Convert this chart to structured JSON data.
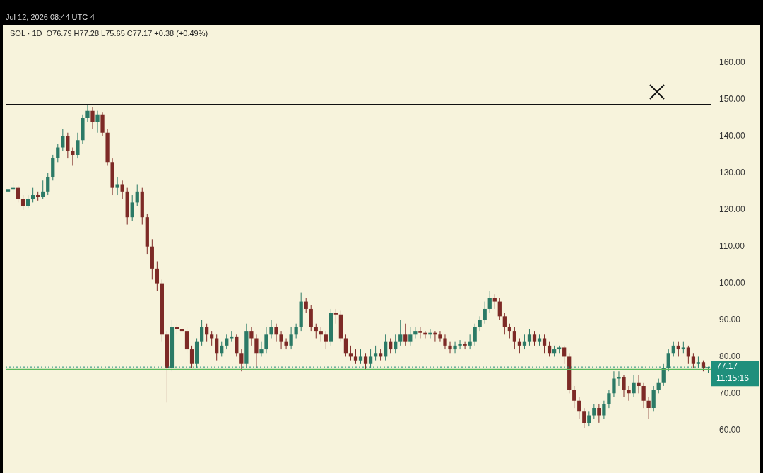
{
  "chart_data": {
    "type": "candlestick",
    "title": "SOL · 1D",
    "subtitle": "O76.79 H77.28 L75.65 C77.17 +0.38 (+0.49%)",
    "annotations": [
      "Jul 12, 2026 08:44 UTC-4",
      "11:15:16"
    ],
    "categories": [
      null,
      null,
      null,
      null,
      null,
      null,
      null,
      null,
      null,
      null,
      null,
      null,
      null,
      null,
      null,
      null,
      null,
      null,
      null,
      null,
      null,
      null,
      null,
      null,
      null,
      null,
      null,
      null,
      null,
      null,
      null,
      null,
      null,
      null,
      null,
      null,
      null,
      null,
      null,
      null,
      null,
      null,
      null,
      null,
      null,
      null,
      null,
      null,
      null,
      null,
      null,
      null,
      null,
      null,
      null,
      null,
      null,
      null,
      null,
      null,
      null,
      null,
      null,
      null,
      null,
      null,
      null,
      null,
      null,
      null,
      null,
      null,
      null,
      null,
      null,
      null,
      null,
      null,
      null,
      null,
      null,
      null,
      null,
      null,
      null,
      null,
      null,
      null,
      null,
      null,
      null,
      null,
      null,
      null,
      null,
      null,
      null,
      null,
      null,
      null,
      null,
      null,
      null,
      null,
      null,
      null,
      null,
      null,
      null,
      null,
      null,
      null,
      null,
      null,
      null,
      null,
      null,
      null,
      null,
      null,
      null,
      null,
      null,
      null,
      null,
      null,
      null,
      null,
      null,
      null,
      null,
      null,
      null,
      null,
      null,
      null,
      null,
      null,
      null,
      null,
      null,
      null
    ],
    "ohlc": [
      [
        125,
        127,
        123.5,
        125.5
      ],
      [
        125.5,
        128,
        124.5,
        126
      ],
      [
        126,
        126.5,
        122,
        123
      ],
      [
        123,
        124,
        120,
        121
      ],
      [
        121,
        124,
        120.5,
        123
      ],
      [
        123,
        126,
        122,
        124
      ],
      [
        124,
        125,
        122.5,
        123.5
      ],
      [
        123.5,
        128,
        123,
        125
      ],
      [
        125,
        130,
        124,
        129
      ],
      [
        129,
        135,
        128,
        134
      ],
      [
        134,
        138,
        133,
        137
      ],
      [
        137,
        142,
        136,
        140
      ],
      [
        140,
        141,
        134,
        136
      ],
      [
        136,
        137,
        132,
        135
      ],
      [
        135,
        141,
        134,
        139
      ],
      [
        139,
        146,
        138,
        145
      ],
      [
        145,
        148.5,
        144,
        147
      ],
      [
        147,
        148,
        142,
        144
      ],
      [
        144,
        147,
        141,
        146
      ],
      [
        146,
        146.5,
        140,
        141
      ],
      [
        141,
        142,
        132,
        133
      ],
      [
        133,
        134,
        124,
        126
      ],
      [
        126,
        129,
        124,
        127
      ],
      [
        127,
        128,
        123,
        125
      ],
      [
        125,
        126,
        116,
        118
      ],
      [
        118,
        124,
        117,
        122
      ],
      [
        122,
        127,
        121,
        125
      ],
      [
        125,
        126,
        116,
        118
      ],
      [
        118,
        119,
        108,
        110
      ],
      [
        110,
        112,
        101,
        104
      ],
      [
        104,
        106,
        98,
        100
      ],
      [
        100,
        101,
        84,
        86
      ],
      [
        86,
        87,
        67.5,
        77
      ],
      [
        77,
        90,
        76,
        88
      ],
      [
        88,
        89,
        86,
        87.5
      ],
      [
        87.5,
        89,
        85,
        87
      ],
      [
        87,
        88,
        81,
        82
      ],
      [
        82,
        83,
        77,
        78
      ],
      [
        78,
        85,
        77,
        84
      ],
      [
        84,
        90,
        83,
        88
      ],
      [
        88,
        89,
        84,
        86
      ],
      [
        86,
        87,
        83,
        85
      ],
      [
        85,
        86,
        79,
        81
      ],
      [
        81,
        84,
        80,
        83
      ],
      [
        83,
        86,
        82,
        85
      ],
      [
        85,
        87,
        84,
        85.5
      ],
      [
        85.5,
        86,
        80,
        81
      ],
      [
        81,
        82,
        76,
        78
      ],
      [
        78,
        89,
        77,
        87
      ],
      [
        87,
        88,
        83,
        85
      ],
      [
        85,
        86,
        77,
        81
      ],
      [
        81,
        84,
        80,
        82
      ],
      [
        82,
        88,
        81,
        86
      ],
      [
        86,
        90,
        85,
        88
      ],
      [
        88,
        89,
        84,
        86
      ],
      [
        86,
        87,
        82,
        84
      ],
      [
        84,
        85,
        82,
        83
      ],
      [
        83,
        88,
        82,
        86
      ],
      [
        86,
        89,
        85,
        88
      ],
      [
        88,
        97.5,
        87,
        95
      ],
      [
        95,
        96,
        92,
        93
      ],
      [
        93,
        94,
        87,
        88
      ],
      [
        88,
        89,
        85,
        87
      ],
      [
        87,
        88,
        84,
        86
      ],
      [
        86,
        87,
        82,
        84
      ],
      [
        84,
        93,
        83,
        92
      ],
      [
        92,
        93,
        89,
        91.5
      ],
      [
        91.5,
        92.5,
        84,
        85
      ],
      [
        85,
        86,
        80,
        81
      ],
      [
        81,
        83,
        79,
        80
      ],
      [
        80,
        82,
        78,
        79
      ],
      [
        79,
        82,
        78,
        80
      ],
      [
        80,
        81,
        76.5,
        78
      ],
      [
        78,
        82,
        77,
        80
      ],
      [
        80,
        83,
        79,
        81
      ],
      [
        81,
        82,
        79,
        80
      ],
      [
        80,
        86,
        79,
        84
      ],
      [
        84,
        85,
        81,
        82
      ],
      [
        82,
        86,
        81,
        84
      ],
      [
        84,
        90,
        83,
        86
      ],
      [
        86,
        89,
        83,
        84
      ],
      [
        84,
        88,
        83,
        86
      ],
      [
        86,
        88,
        85,
        87
      ],
      [
        87,
        88,
        85,
        86.5
      ],
      [
        86.5,
        87,
        85,
        86
      ],
      [
        86,
        87.5,
        85,
        86.5
      ],
      [
        86.5,
        87,
        84,
        86
      ],
      [
        86,
        87,
        84,
        85
      ],
      [
        85,
        86,
        82,
        83
      ],
      [
        83,
        84,
        81,
        82
      ],
      [
        82,
        84,
        81,
        83
      ],
      [
        83,
        84.5,
        82,
        83.5
      ],
      [
        83.5,
        84,
        82,
        83
      ],
      [
        83,
        86,
        82,
        84
      ],
      [
        84,
        89,
        83,
        88
      ],
      [
        88,
        91,
        87,
        90
      ],
      [
        90,
        95,
        89,
        93
      ],
      [
        93,
        98,
        92,
        96
      ],
      [
        96,
        97,
        93,
        95
      ],
      [
        95,
        96,
        90,
        91
      ],
      [
        91,
        92,
        86,
        88
      ],
      [
        88,
        89,
        85,
        87
      ],
      [
        87,
        88,
        82,
        84
      ],
      [
        84,
        85,
        81,
        83
      ],
      [
        83,
        86,
        82,
        84
      ],
      [
        84,
        87.5,
        83,
        86
      ],
      [
        86,
        87,
        83,
        84
      ],
      [
        84,
        86,
        83,
        85
      ],
      [
        85,
        86,
        81,
        83
      ],
      [
        83,
        84,
        80,
        81
      ],
      [
        81,
        83,
        80,
        82
      ],
      [
        82,
        83,
        81,
        82.5
      ],
      [
        82.5,
        83,
        78,
        80
      ],
      [
        80,
        81,
        70,
        71
      ],
      [
        71,
        72,
        66,
        68
      ],
      [
        68,
        69,
        63,
        65
      ],
      [
        65,
        66,
        60.5,
        62
      ],
      [
        62,
        65,
        61,
        64
      ],
      [
        64,
        67,
        63,
        66
      ],
      [
        66,
        67,
        62,
        64
      ],
      [
        64,
        68,
        63,
        67
      ],
      [
        67,
        71,
        66,
        70
      ],
      [
        70,
        76,
        69,
        74
      ],
      [
        74,
        76,
        72,
        74.5
      ],
      [
        74.5,
        75,
        69,
        71
      ],
      [
        71,
        72,
        68,
        70
      ],
      [
        70,
        75,
        69,
        73
      ],
      [
        73,
        75,
        70,
        72
      ],
      [
        72,
        73,
        66,
        68
      ],
      [
        68,
        69,
        63,
        66
      ],
      [
        66,
        72,
        65,
        71
      ],
      [
        71,
        74,
        70,
        73
      ],
      [
        73,
        78,
        72,
        77
      ],
      [
        77,
        82,
        76,
        81
      ],
      [
        81,
        84,
        80,
        83
      ],
      [
        83,
        84,
        80,
        82
      ],
      [
        82,
        84,
        81,
        82.5
      ],
      [
        82.5,
        83,
        78,
        80
      ],
      [
        80,
        81,
        77,
        78
      ],
      [
        78,
        80,
        77,
        78.5
      ],
      [
        78.5,
        79,
        76,
        76.8
      ],
      [
        76.79,
        77.28,
        75.65,
        77.17
      ]
    ],
    "colors": [
      "#2b7a66",
      "#2b7a66",
      "#7d2a26",
      "#7d2a26",
      "#2b7a66",
      "#2b7a66",
      "#7d2a26",
      "#2b7a66",
      "#2b7a66",
      "#2b7a66",
      "#2b7a66",
      "#2b7a66",
      "#7d2a26",
      "#7d2a26",
      "#2b7a66",
      "#2b7a66",
      "#2b7a66",
      "#7d2a26",
      "#2b7a66",
      "#7d2a26",
      "#7d2a26",
      "#7d2a26",
      "#2b7a66",
      "#7d2a26",
      "#7d2a26",
      "#2b7a66",
      "#2b7a66",
      "#7d2a26",
      "#7d2a26",
      "#7d2a26",
      "#7d2a26",
      "#7d2a26",
      "#7d2a26",
      "#2b7a66",
      "#7d2a26",
      "#7d2a26",
      "#7d2a26",
      "#7d2a26",
      "#2b7a66",
      "#2b7a66",
      "#7d2a26",
      "#7d2a26",
      "#7d2a26",
      "#2b7a66",
      "#2b7a66",
      "#2b7a66",
      "#7d2a26",
      "#7d2a26",
      "#2b7a66",
      "#7d2a26",
      "#7d2a26",
      "#2b7a66",
      "#2b7a66",
      "#2b7a66",
      "#7d2a26",
      "#7d2a26",
      "#7d2a26",
      "#2b7a66",
      "#2b7a66",
      "#2b7a66",
      "#7d2a26",
      "#7d2a26",
      "#7d2a26",
      "#7d2a26",
      "#7d2a26",
      "#2b7a66",
      "#7d2a26",
      "#7d2a26",
      "#7d2a26",
      "#7d2a26",
      "#7d2a26",
      "#2b7a66",
      "#7d2a26",
      "#2b7a66",
      "#2b7a66",
      "#7d2a26",
      "#2b7a66",
      "#7d2a26",
      "#2b7a66",
      "#2b7a66",
      "#7d2a26",
      "#2b7a66",
      "#2b7a66",
      "#7d2a26",
      "#7d2a26",
      "#2b7a66",
      "#7d2a26",
      "#7d2a26",
      "#7d2a26",
      "#7d2a26",
      "#2b7a66",
      "#2b7a66",
      "#7d2a26",
      "#2b7a66",
      "#2b7a66",
      "#2b7a66",
      "#2b7a66",
      "#2b7a66",
      "#7d2a26",
      "#7d2a26",
      "#7d2a26",
      "#7d2a26",
      "#7d2a26",
      "#7d2a26",
      "#2b7a66",
      "#2b7a66",
      "#7d2a26",
      "#2b7a66",
      "#7d2a26",
      "#7d2a26",
      "#2b7a66",
      "#2b7a66",
      "#7d2a26",
      "#7d2a26",
      "#7d2a26",
      "#7d2a26",
      "#7d2a26",
      "#2b7a66",
      "#2b7a66",
      "#7d2a26",
      "#2b7a66",
      "#2b7a66",
      "#2b7a66",
      "#2b7a66",
      "#7d2a26",
      "#7d2a26",
      "#2b7a66",
      "#7d2a26",
      "#7d2a26",
      "#7d2a26",
      "#2b7a66",
      "#2b7a66",
      "#2b7a66",
      "#2b7a66",
      "#2b7a66",
      "#7d2a26",
      "#2b7a66",
      "#7d2a26",
      "#7d2a26",
      "#2b7a66",
      "#7d2a26",
      "#2b7a66"
    ],
    "ylim": [
      52,
      166
    ],
    "yticks": [
      {
        "value": 60,
        "label": "60.00"
      },
      {
        "value": 70,
        "label": "70.00"
      },
      {
        "value": 80,
        "label": "80.00"
      },
      {
        "value": 90,
        "label": "90.00"
      },
      {
        "value": 100,
        "label": "100.00"
      },
      {
        "value": 110,
        "label": "110.00"
      },
      {
        "value": 120,
        "label": "120.00"
      },
      {
        "value": 130,
        "label": "130.00"
      },
      {
        "value": 140,
        "label": "140.00"
      },
      {
        "value": 150,
        "label": "150.00"
      },
      {
        "value": 160,
        "label": "160.00"
      }
    ],
    "tick_labels": "y",
    "grid": false,
    "legend": false,
    "ref_lines": [
      {
        "axis": "y",
        "value": 148.7,
        "color": "#111111"
      },
      {
        "axis": "y",
        "value": 76.5,
        "color": "#5cb85c"
      },
      {
        "axis": "y",
        "value": 77.17,
        "label": "77.17",
        "color": "#1f8f7c",
        "line_style": "dotted"
      }
    ]
  }
}
